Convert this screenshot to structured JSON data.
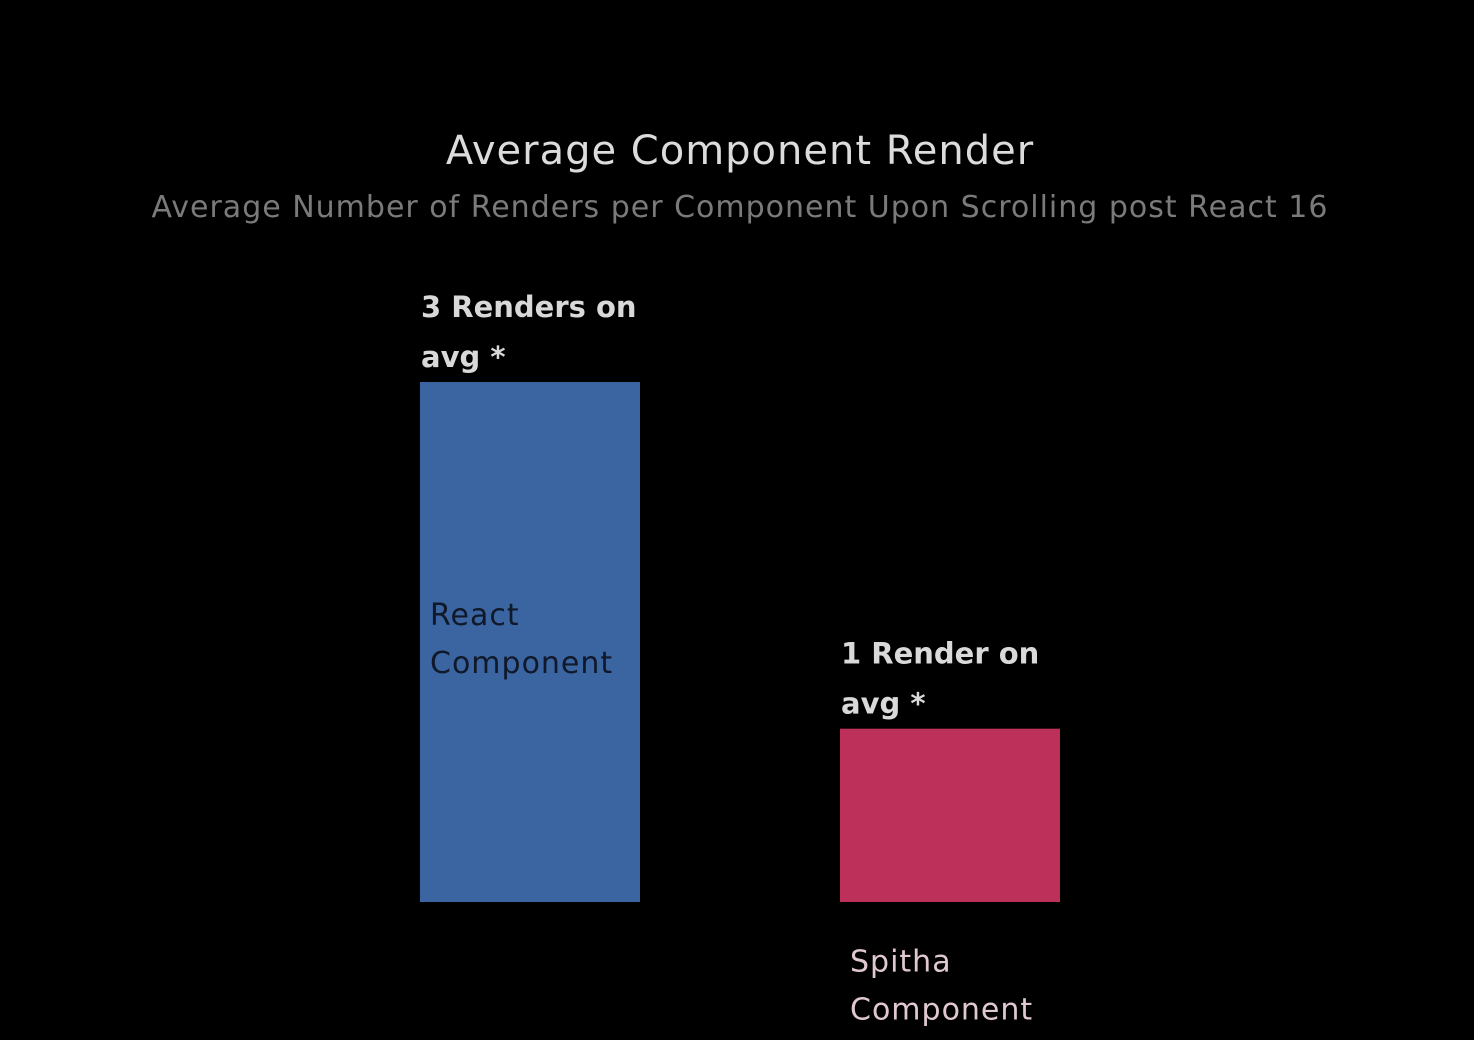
{
  "colors": {
    "background": "#000000",
    "title": "#dcdcdc",
    "subtitle": "#7a7a7a",
    "value_label": "#d9d9d9"
  },
  "chart_data": {
    "type": "bar",
    "title": "Average Component Render",
    "subtitle": "Average Number of Renders per Component Upon Scrolling post React 16",
    "xlabel": "",
    "ylabel": "",
    "categories": [
      "React Component",
      "Spitha Component"
    ],
    "values": [
      3,
      1
    ],
    "value_labels": [
      "3 Renders on avg *",
      "1 Render on avg *"
    ],
    "bar_colors": [
      "#3a65a0",
      "#bd3059"
    ],
    "category_label_colors": [
      "#10182a",
      "#e0c8d0"
    ],
    "grid": false,
    "legend": "none"
  }
}
